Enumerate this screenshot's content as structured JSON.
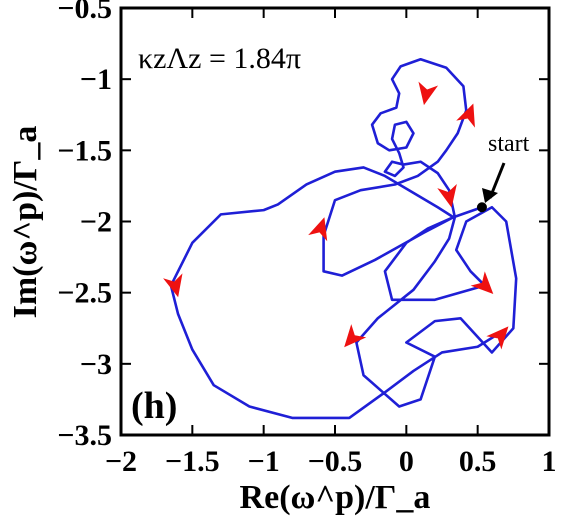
{
  "chart_data": {
    "type": "line",
    "title": "",
    "xlabel": "Re(ω^p)/Γ_a",
    "ylabel": "Im(ω^p)/Γ_a",
    "xlim": [
      -2,
      1
    ],
    "ylim": [
      -3.5,
      -0.5
    ],
    "x_ticks": [
      -2,
      -1.5,
      -1,
      -0.5,
      0,
      0.5,
      1
    ],
    "y_ticks": [
      -3.5,
      -3,
      -2.5,
      -2,
      -1.5,
      -1,
      -0.5
    ],
    "x_tick_labels": [
      "−2",
      "−1.5",
      "−1",
      "−0.5",
      "0",
      "0.5",
      "1"
    ],
    "y_tick_labels": [
      "−3.5",
      "−3",
      "−2.5",
      "−2",
      "−1.5",
      "−1",
      "−0.5"
    ],
    "grid": false,
    "panel_label": "(h)",
    "annotation": {
      "parameter": "κzΛz = 1.84π",
      "start_label": "start",
      "start_point": [
        0.53,
        -1.9
      ]
    },
    "colors": {
      "trajectory": "#1f1fd6",
      "arrows": "#ee1111",
      "start_marker": "#000000"
    },
    "series": [
      {
        "points": [
          [
            0.53,
            -1.9
          ],
          [
            0.33,
            -1.97
          ],
          [
            0.12,
            -2.08
          ],
          [
            -0.22,
            -2.27
          ],
          [
            -0.45,
            -2.38
          ],
          [
            -0.58,
            -2.35
          ],
          [
            -0.58,
            -2.1
          ],
          [
            -0.5,
            -1.85
          ],
          [
            -0.32,
            -1.78
          ],
          [
            -0.08,
            -1.74
          ],
          [
            0.08,
            -1.68
          ],
          [
            0.22,
            -1.58
          ],
          [
            0.28,
            -1.5
          ],
          [
            0.36,
            -1.38
          ],
          [
            0.42,
            -1.22
          ],
          [
            0.4,
            -1.05
          ],
          [
            0.28,
            -0.92
          ],
          [
            0.1,
            -0.86
          ],
          [
            -0.04,
            -0.91
          ],
          [
            -0.1,
            -1.0
          ],
          [
            -0.05,
            -1.1
          ],
          [
            -0.07,
            -1.2
          ],
          [
            -0.18,
            -1.24
          ],
          [
            -0.24,
            -1.32
          ],
          [
            -0.2,
            -1.45
          ],
          [
            -0.12,
            -1.5
          ],
          [
            0.0,
            -1.48
          ],
          [
            0.05,
            -1.38
          ],
          [
            0.0,
            -1.3
          ],
          [
            -0.08,
            -1.32
          ],
          [
            -0.1,
            -1.42
          ],
          [
            -0.05,
            -1.52
          ],
          [
            -0.02,
            -1.62
          ],
          [
            -0.08,
            -1.68
          ],
          [
            -0.15,
            -1.65
          ],
          [
            -0.1,
            -1.58
          ],
          [
            -0.02,
            -1.6
          ],
          [
            0.1,
            -1.58
          ],
          [
            0.22,
            -1.66
          ],
          [
            0.3,
            -1.78
          ],
          [
            0.34,
            -1.97
          ],
          [
            0.3,
            -2.12
          ],
          [
            0.2,
            -2.28
          ],
          [
            0.05,
            -2.48
          ],
          [
            -0.2,
            -2.68
          ],
          [
            -0.35,
            -2.85
          ],
          [
            -0.3,
            -3.08
          ],
          [
            -0.05,
            -3.3
          ],
          [
            0.1,
            -3.25
          ],
          [
            0.2,
            -2.95
          ],
          [
            0.0,
            -2.85
          ],
          [
            0.2,
            -2.7
          ],
          [
            0.38,
            -2.68
          ],
          [
            0.6,
            -2.92
          ],
          [
            0.75,
            -2.75
          ],
          [
            0.77,
            -2.4
          ],
          [
            0.7,
            -2.0
          ],
          [
            0.6,
            -1.9
          ],
          [
            0.42,
            -2.0
          ],
          [
            0.35,
            -2.2
          ],
          [
            0.45,
            -2.35
          ],
          [
            0.55,
            -2.45
          ],
          [
            0.2,
            -2.55
          ],
          [
            -0.1,
            -2.55
          ],
          [
            -0.15,
            -2.35
          ],
          [
            0.0,
            -2.15
          ],
          [
            0.15,
            -2.05
          ],
          [
            0.33,
            -1.97
          ],
          [
            0.22,
            -1.9
          ],
          [
            -0.15,
            -1.68
          ],
          [
            -0.3,
            -1.62
          ],
          [
            -0.5,
            -1.65
          ],
          [
            -0.7,
            -1.74
          ],
          [
            -0.9,
            -1.88
          ],
          [
            -1.0,
            -1.92
          ],
          [
            -1.3,
            -1.95
          ],
          [
            -1.5,
            -2.15
          ],
          [
            -1.65,
            -2.45
          ],
          [
            -1.6,
            -2.65
          ],
          [
            -1.5,
            -2.9
          ],
          [
            -1.35,
            -3.15
          ],
          [
            -1.1,
            -3.3
          ],
          [
            -0.8,
            -3.38
          ],
          [
            -0.4,
            -3.38
          ],
          [
            -0.15,
            -3.2
          ],
          [
            0.05,
            -3.05
          ],
          [
            0.25,
            -2.92
          ],
          [
            0.5,
            -2.88
          ],
          [
            0.66,
            -2.78
          ]
        ]
      }
    ],
    "direction_arrows": [
      [
        0.14,
        -1.1
      ],
      [
        0.44,
        -1.25
      ],
      [
        0.3,
        -1.82
      ],
      [
        -0.6,
        -2.05
      ],
      [
        -1.62,
        -2.45
      ],
      [
        -0.38,
        -2.82
      ],
      [
        0.55,
        -2.45
      ],
      [
        0.66,
        -2.8
      ]
    ]
  }
}
